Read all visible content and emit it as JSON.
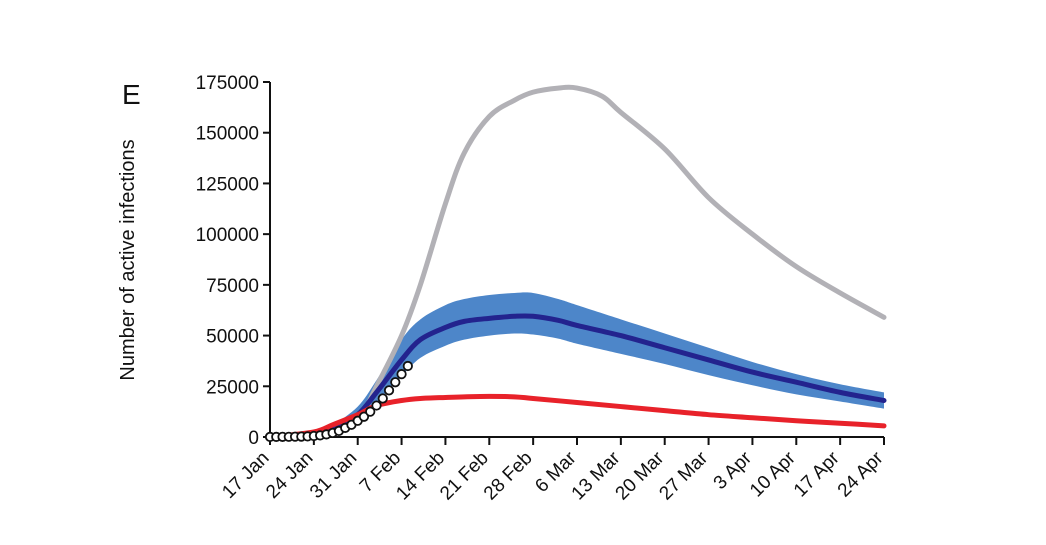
{
  "chart_data": {
    "type": "line",
    "panel_label": "E",
    "ylabel": "Number of active infections",
    "xlabel": "",
    "x_tick_labels": [
      "17 Jan",
      "24 Jan",
      "31 Jan",
      "7 Feb",
      "14 Feb",
      "21 Feb",
      "28 Feb",
      "6 Mar",
      "13 Mar",
      "20 Mar",
      "27 Mar",
      "3 Apr",
      "10 Apr",
      "17 Apr",
      "24 Apr"
    ],
    "y_ticks": [
      0,
      25000,
      50000,
      75000,
      100000,
      125000,
      150000,
      175000
    ],
    "ylim": [
      0,
      175000
    ],
    "xlim": [
      "2020-01-17",
      "2020-04-24"
    ],
    "grid": false,
    "legend": "none",
    "colors": {
      "gray": "#b2b1b6",
      "blue_band": "#4d86c9",
      "blue_line": "#23238e",
      "red": "#e8222a",
      "axis": "#111111"
    },
    "series": [
      {
        "color": "gray",
        "x": [
          "2020-01-17",
          "2020-01-24",
          "2020-01-27",
          "2020-01-31",
          "2020-02-03",
          "2020-02-07",
          "2020-02-10",
          "2020-02-14",
          "2020-02-17",
          "2020-02-21",
          "2020-02-25",
          "2020-02-28",
          "2020-03-03",
          "2020-03-06",
          "2020-03-10",
          "2020-03-13",
          "2020-03-20",
          "2020-03-27",
          "2020-04-03",
          "2020-04-10",
          "2020-04-17",
          "2020-04-24"
        ],
        "y": [
          0,
          300,
          1500,
          8000,
          25000,
          50000,
          75000,
          115000,
          140000,
          158000,
          166000,
          170000,
          172000,
          172000,
          168000,
          160000,
          142000,
          118000,
          100000,
          84000,
          71000,
          59000
        ]
      },
      {
        "color": "blue_line",
        "x": [
          "2020-01-17",
          "2020-01-24",
          "2020-01-27",
          "2020-01-31",
          "2020-02-03",
          "2020-02-07",
          "2020-02-10",
          "2020-02-14",
          "2020-02-17",
          "2020-02-21",
          "2020-02-25",
          "2020-02-28",
          "2020-03-03",
          "2020-03-06",
          "2020-03-13",
          "2020-03-20",
          "2020-03-27",
          "2020-04-03",
          "2020-04-10",
          "2020-04-17",
          "2020-04-24"
        ],
        "y": [
          0,
          1500,
          4000,
          11000,
          22000,
          38000,
          48000,
          54000,
          57000,
          58500,
          59500,
          59500,
          57500,
          55000,
          50000,
          44000,
          38000,
          32000,
          27000,
          22000,
          18000
        ],
        "band_upper": [
          0,
          2500,
          6000,
          15000,
          28000,
          48000,
          58000,
          65000,
          68000,
          70000,
          71000,
          71000,
          68000,
          65000,
          58000,
          51000,
          44000,
          37000,
          31000,
          26000,
          22000
        ],
        "band_lower": [
          0,
          800,
          2500,
          8000,
          17000,
          30000,
          39000,
          45000,
          48000,
          50000,
          51000,
          50500,
          48500,
          46000,
          41000,
          36000,
          30500,
          25500,
          21000,
          17500,
          14000
        ]
      },
      {
        "color": "red",
        "x": [
          "2020-01-17",
          "2020-01-24",
          "2020-01-27",
          "2020-01-31",
          "2020-02-03",
          "2020-02-07",
          "2020-02-10",
          "2020-02-14",
          "2020-02-17",
          "2020-02-21",
          "2020-02-25",
          "2020-02-28",
          "2020-03-06",
          "2020-03-13",
          "2020-03-20",
          "2020-03-27",
          "2020-04-03",
          "2020-04-10",
          "2020-04-17",
          "2020-04-24"
        ],
        "y": [
          0,
          2500,
          6000,
          11000,
          15500,
          18000,
          19000,
          19500,
          19800,
          20000,
          19800,
          19000,
          17000,
          15000,
          13000,
          11000,
          9500,
          8000,
          6800,
          5500
        ]
      }
    ],
    "observed": {
      "x": [
        "2020-01-17",
        "2020-01-18",
        "2020-01-19",
        "2020-01-20",
        "2020-01-21",
        "2020-01-22",
        "2020-01-23",
        "2020-01-24",
        "2020-01-25",
        "2020-01-26",
        "2020-01-27",
        "2020-01-28",
        "2020-01-29",
        "2020-01-30",
        "2020-01-31",
        "2020-02-01",
        "2020-02-02",
        "2020-02-03",
        "2020-02-04",
        "2020-02-05",
        "2020-02-06",
        "2020-02-07",
        "2020-02-08"
      ],
      "y": [
        50,
        60,
        80,
        100,
        150,
        200,
        300,
        500,
        800,
        1300,
        2000,
        3000,
        4500,
        6000,
        8000,
        10000,
        12500,
        15500,
        19000,
        23000,
        27000,
        31000,
        35000
      ]
    }
  }
}
